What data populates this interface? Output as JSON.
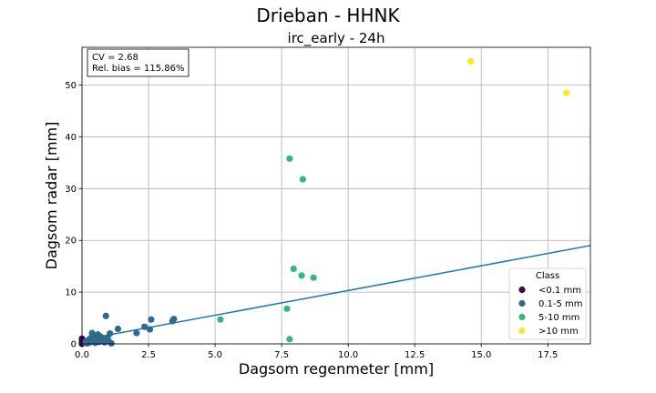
{
  "chart_data": {
    "type": "scatter",
    "suptitle": "Drieban - HHNK",
    "title": "irc_early - 24h",
    "xlabel": "Dagsom regenmeter [mm]",
    "ylabel": "Dagsom radar [mm]",
    "xlim": [
      0,
      19.1
    ],
    "ylim": [
      0,
      57.3
    ],
    "xticks": [
      "0.0",
      "2.5",
      "5.0",
      "7.5",
      "10.0",
      "12.5",
      "15.0",
      "17.5"
    ],
    "xtick_values": [
      0,
      2.5,
      5,
      7.5,
      10,
      12.5,
      15,
      17.5
    ],
    "yticks": [
      "0",
      "10",
      "20",
      "30",
      "40",
      "50"
    ],
    "ytick_values": [
      0,
      10,
      20,
      30,
      40,
      50
    ],
    "grid": true,
    "annotation": [
      "CV = 2.68",
      "Rel. bias = 115.86%"
    ],
    "legend": {
      "title": "Class",
      "placement": "lower-right",
      "entries": [
        {
          "label": "<0.1 mm",
          "color": "#440154"
        },
        {
          "label": "0.1-5 mm",
          "color": "#31688e"
        },
        {
          "label": "5-10 mm",
          "color": "#35b779"
        },
        {
          "label": ">10 mm",
          "color": "#fde725"
        }
      ]
    },
    "series": [
      {
        "class": "<0.1 mm",
        "color": "#440154",
        "points": [
          [
            0.0,
            0.0
          ],
          [
            0.0,
            0.3
          ],
          [
            0.0,
            0.7
          ],
          [
            0.0,
            1.0
          ],
          [
            0.05,
            0.2
          ],
          [
            0.05,
            0.5
          ],
          [
            0.0,
            0.1
          ]
        ]
      },
      {
        "class": "0.1-5 mm",
        "color": "#31688e",
        "points": [
          [
            0.1,
            0.2
          ],
          [
            0.15,
            0.5
          ],
          [
            0.2,
            0.1
          ],
          [
            0.25,
            0.8
          ],
          [
            0.3,
            0.3
          ],
          [
            0.35,
            1.2
          ],
          [
            0.38,
            2.1
          ],
          [
            0.4,
            0.6
          ],
          [
            0.45,
            1.5
          ],
          [
            0.5,
            0.2
          ],
          [
            0.55,
            1.0
          ],
          [
            0.6,
            1.8
          ],
          [
            0.65,
            0.4
          ],
          [
            0.7,
            1.4
          ],
          [
            0.75,
            0.7
          ],
          [
            0.8,
            1.1
          ],
          [
            0.85,
            0.3
          ],
          [
            0.9,
            5.4
          ],
          [
            0.95,
            1.2
          ],
          [
            1.0,
            0.6
          ],
          [
            1.05,
            2.0
          ],
          [
            1.1,
            0.1
          ],
          [
            1.35,
            2.9
          ],
          [
            2.05,
            2.1
          ],
          [
            2.35,
            3.3
          ],
          [
            2.55,
            2.8
          ],
          [
            2.6,
            4.7
          ],
          [
            3.4,
            4.4
          ],
          [
            3.45,
            4.8
          ]
        ]
      },
      {
        "class": "5-10 mm",
        "color": "#35b779",
        "points": [
          [
            5.2,
            4.7
          ],
          [
            7.7,
            6.8
          ],
          [
            7.8,
            0.9
          ],
          [
            7.8,
            35.8
          ],
          [
            7.95,
            14.5
          ],
          [
            8.25,
            13.2
          ],
          [
            8.3,
            31.8
          ],
          [
            8.7,
            12.8
          ]
        ]
      },
      {
        "class": ">10 mm",
        "color": "#fde725",
        "points": [
          [
            14.6,
            54.6
          ],
          [
            18.2,
            48.5
          ]
        ]
      }
    ],
    "fit_line": {
      "slope": 0.9549,
      "intercept": 0.76,
      "color": "#1f77b4"
    }
  }
}
